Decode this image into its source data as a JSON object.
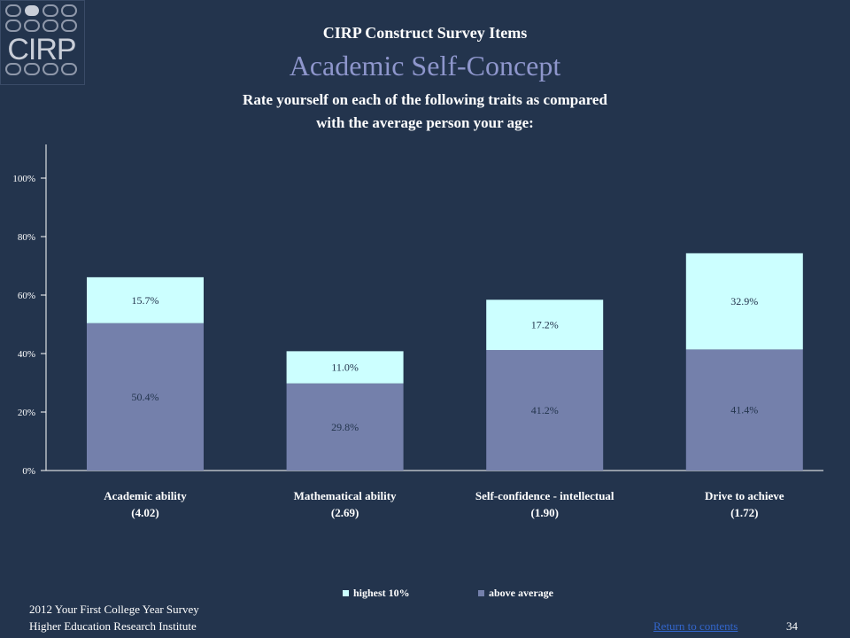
{
  "logo": {
    "text": "CIRP"
  },
  "header": {
    "kicker": "CIRP Construct Survey Items",
    "title": "Academic Self-Concept",
    "subtitle_line1": "Rate yourself on each of the following traits as compared",
    "subtitle_line2": "with the average person your age:"
  },
  "colors": {
    "background": "#23344d",
    "title": "#8e96cc",
    "above_average": "#7480ab",
    "highest_10": "#ccffff",
    "link": "#3366cc"
  },
  "chart_data": {
    "type": "bar",
    "stacked": true,
    "title": "",
    "xlabel": "",
    "ylabel": "",
    "ylim": [
      0,
      1.1
    ],
    "yticks": [
      "0%",
      "20%",
      "40%",
      "60%",
      "80%",
      "100%"
    ],
    "ytick_values": [
      0,
      0.2,
      0.4,
      0.6,
      0.8,
      1.0
    ],
    "categories": [
      "Academic ability",
      "Mathematical ability",
      "Self-confidence - intellectual",
      "Drive to achieve"
    ],
    "category_means": [
      "(4.02)",
      "(2.69)",
      "(1.90)",
      "(1.72)"
    ],
    "series": [
      {
        "name": "above average",
        "values": [
          0.504,
          0.298,
          0.412,
          0.414
        ],
        "labels": [
          "50.4%",
          "29.8%",
          "41.2%",
          "41.4%"
        ],
        "color": "#7480ab"
      },
      {
        "name": "highest 10%",
        "values": [
          0.157,
          0.11,
          0.172,
          0.329
        ],
        "labels": [
          "15.7%",
          "11.0%",
          "17.2%",
          "32.9%"
        ],
        "color": "#ccffff"
      }
    ],
    "legend_position": "bottom",
    "grid": false
  },
  "legend": {
    "highest": "highest 10%",
    "above": "above average"
  },
  "footer": {
    "line1": "2012 Your First College Year Survey",
    "line2": "Higher Education Research Institute",
    "link": "Return to contents",
    "page_number": "34"
  }
}
